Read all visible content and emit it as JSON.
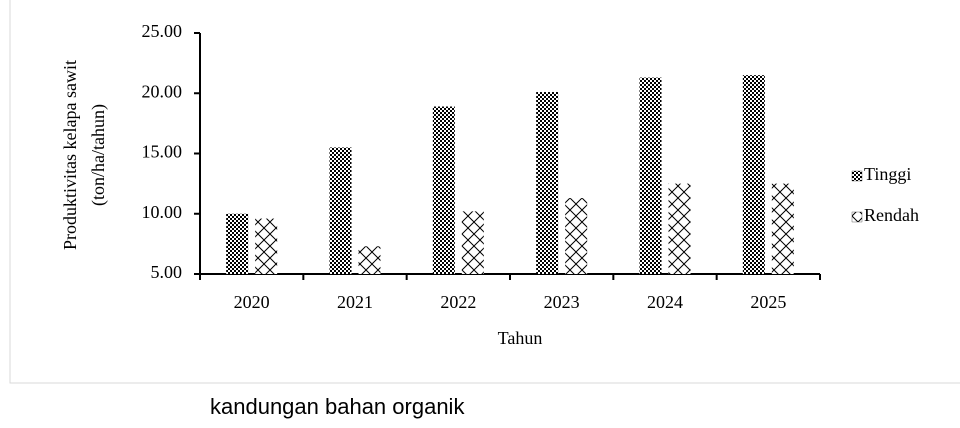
{
  "chart_data": {
    "type": "bar",
    "categories": [
      "2020",
      "2021",
      "2022",
      "2023",
      "2024",
      "2025"
    ],
    "series": [
      {
        "name": "Tinggi",
        "color": "#000000",
        "values": [
          10.0,
          15.5,
          18.9,
          20.1,
          21.3,
          21.5
        ]
      },
      {
        "name": "Rendah",
        "color": "#000000",
        "values": [
          9.6,
          7.3,
          10.2,
          11.3,
          12.5,
          12.5
        ]
      }
    ],
    "ylabel": [
      "Produktivitas kelapa sawit",
      "(ton/ha/tahun)"
    ],
    "xlabel": "Tahun",
    "ylim": [
      5,
      25
    ],
    "yticks": [
      {
        "value": 5,
        "label": "5.00"
      },
      {
        "value": 10,
        "label": "10.00"
      },
      {
        "value": 15,
        "label": "15.00"
      },
      {
        "value": 20,
        "label": "20.00"
      },
      {
        "value": 25,
        "label": "25.00"
      }
    ],
    "legend": "right"
  },
  "caption": "kandungan bahan organik"
}
